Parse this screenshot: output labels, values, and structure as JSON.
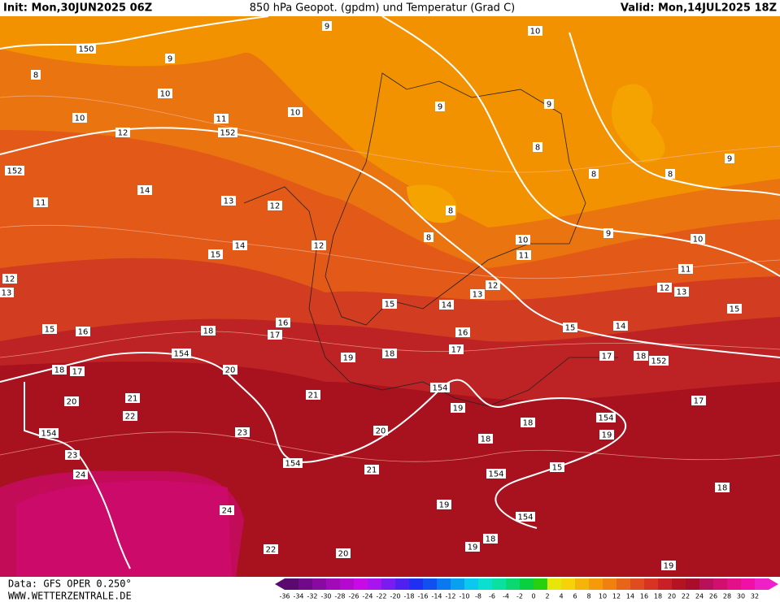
{
  "header": {
    "init": "Init: Mon,30JUN2025 06Z",
    "title": "850 hPa Geopot. (gpdm) und Temperatur (Grad C)",
    "valid": "Valid: Mon,14JUL2025 18Z"
  },
  "footer": {
    "data": "Data: GFS OPER 0.250°",
    "site": "WWW.WETTERZENTRALE.DE"
  },
  "colorbar_labels": [
    -36,
    -34,
    -32,
    -30,
    -28,
    -26,
    -24,
    -22,
    -20,
    -18,
    -16,
    -14,
    -12,
    -10,
    -8,
    -6,
    -4,
    -2,
    0,
    2,
    4,
    6,
    8,
    10,
    12,
    14,
    16,
    18,
    20,
    22,
    24,
    26,
    28,
    30,
    32
  ],
  "contour_labels": [
    9,
    10,
    150,
    9,
    8,
    10,
    10,
    9,
    9,
    10,
    11,
    152,
    12,
    8,
    9,
    152,
    8,
    8,
    14,
    11,
    13,
    12,
    8,
    9,
    10,
    8,
    10,
    14,
    15,
    12,
    11,
    11,
    12,
    12,
    12,
    13,
    13,
    13,
    14,
    15,
    15,
    15,
    16,
    18,
    17,
    16,
    15,
    14,
    16,
    17,
    18,
    19,
    17,
    18,
    152,
    154,
    18,
    17,
    20,
    154,
    21,
    21,
    20,
    17,
    19,
    22,
    154,
    18,
    19,
    23,
    20,
    154,
    18,
    23,
    154,
    21,
    15,
    154,
    24,
    18,
    19,
    24,
    154,
    18,
    19,
    22,
    20,
    19
  ]
}
